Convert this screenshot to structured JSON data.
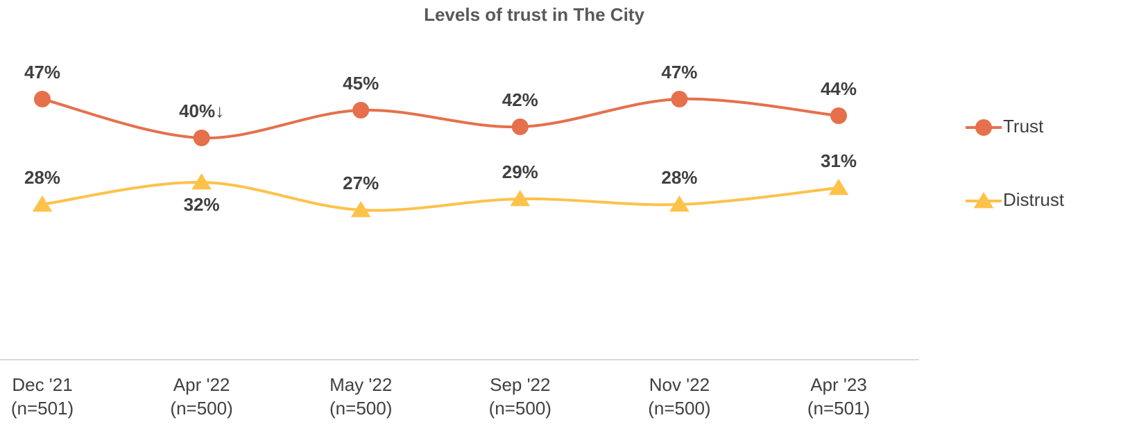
{
  "chart_data": {
    "type": "line",
    "title": "Levels of trust in The City",
    "categories": [
      "Dec '21\n(n=501)",
      "Apr '22\n(n=500)",
      "May '22\n(n=500)",
      "Sep '22\n(n=500)",
      "Nov '22\n(n=500)",
      "Apr '23\n(n=501)"
    ],
    "series": [
      {
        "name": "Trust",
        "color": "#e5704b",
        "marker": "circle",
        "values": [
          47,
          40,
          45,
          42,
          47,
          44
        ],
        "value_labels": [
          "47%",
          "40%↓",
          "45%",
          "42%",
          "47%",
          "44%"
        ]
      },
      {
        "name": "Distrust",
        "color": "#fdc24a",
        "marker": "triangle",
        "values": [
          28,
          32,
          27,
          29,
          28,
          31
        ],
        "value_labels": [
          "28%",
          "32%",
          "27%",
          "29%",
          "28%",
          "31%"
        ]
      }
    ],
    "ylim": [
      0,
      50
    ],
    "smooth": true,
    "legend": "right"
  }
}
